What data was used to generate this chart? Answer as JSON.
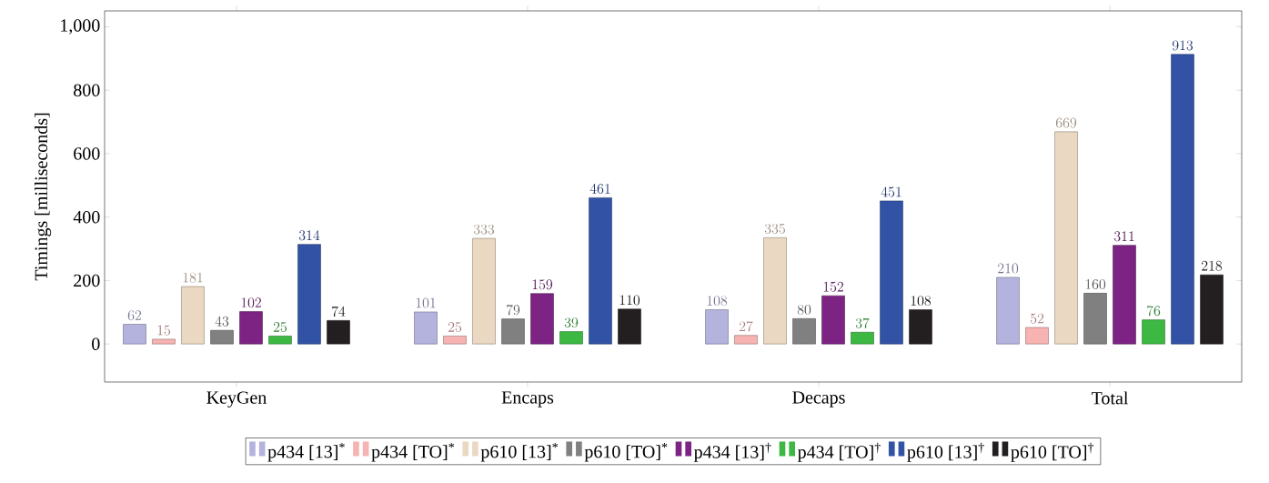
{
  "chart_data": {
    "type": "bar",
    "ylabel": "Timings [milliseconds]",
    "categories": [
      "KeyGen",
      "Encaps",
      "Decaps",
      "Total"
    ],
    "series": [
      {
        "name": "p434 [13]$^{*}$",
        "color": "#b3b3dd",
        "values": [
          62,
          101,
          108,
          210
        ]
      },
      {
        "name": "p434 [TO]$^{*}$",
        "color": "#f7b2b2",
        "values": [
          15,
          25,
          27,
          52
        ]
      },
      {
        "name": "p610 [13]$^{*}$",
        "color": "#ead8c2",
        "values": [
          181,
          333,
          335,
          669
        ]
      },
      {
        "name": "p610 [TO]$^{*}$",
        "color": "#808080",
        "values": [
          43,
          79,
          80,
          160
        ]
      },
      {
        "name": "p434 [13]$^{†}$",
        "color": "#7c2383",
        "values": [
          102,
          159,
          152,
          311
        ]
      },
      {
        "name": "p434 [TO]$^{†}$",
        "color": "#3cb843",
        "values": [
          25,
          39,
          37,
          76
        ]
      },
      {
        "name": "p610 [13]$^{†}$",
        "color": "#3252a6",
        "values": [
          314,
          461,
          451,
          913
        ]
      },
      {
        "name": "p610 [TO]$^{†}$",
        "color": "#231f20",
        "values": [
          74,
          110,
          108,
          218
        ]
      }
    ],
    "ylim": [
      -120,
      1050
    ],
    "yticks": [
      0,
      200,
      400,
      600,
      800,
      {
        "value": 1000,
        "label": "1,000"
      }
    ],
    "data_labels": true,
    "legend": "bottom",
    "grid": false
  }
}
